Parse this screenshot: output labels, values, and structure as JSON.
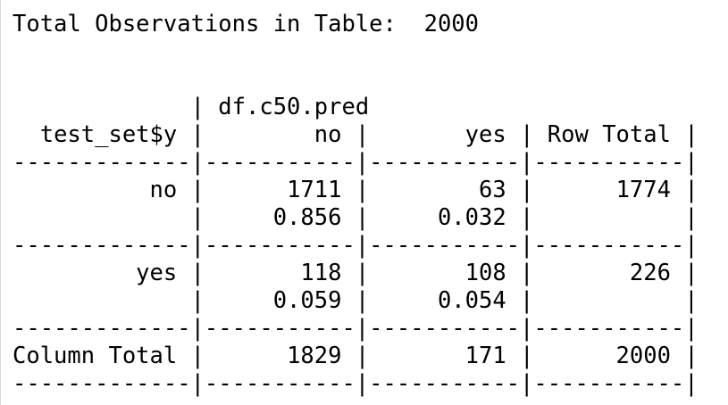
{
  "header": {
    "label": "Total Observations in Table:",
    "value": "2000"
  },
  "table": {
    "col_var_label": "df.c50.pred",
    "row_var_label": "test_set$y",
    "col_headers": [
      "no",
      "yes",
      "Row Total"
    ],
    "rows": [
      {
        "label": "no",
        "counts": [
          "1711",
          "63",
          "1774"
        ],
        "proportions": [
          "0.856",
          "0.032"
        ]
      },
      {
        "label": "yes",
        "counts": [
          "118",
          "108",
          "226"
        ],
        "proportions": [
          "0.059",
          "0.054"
        ]
      }
    ],
    "column_total": {
      "label": "Column Total",
      "values": [
        "1829",
        "171",
        "2000"
      ]
    }
  }
}
